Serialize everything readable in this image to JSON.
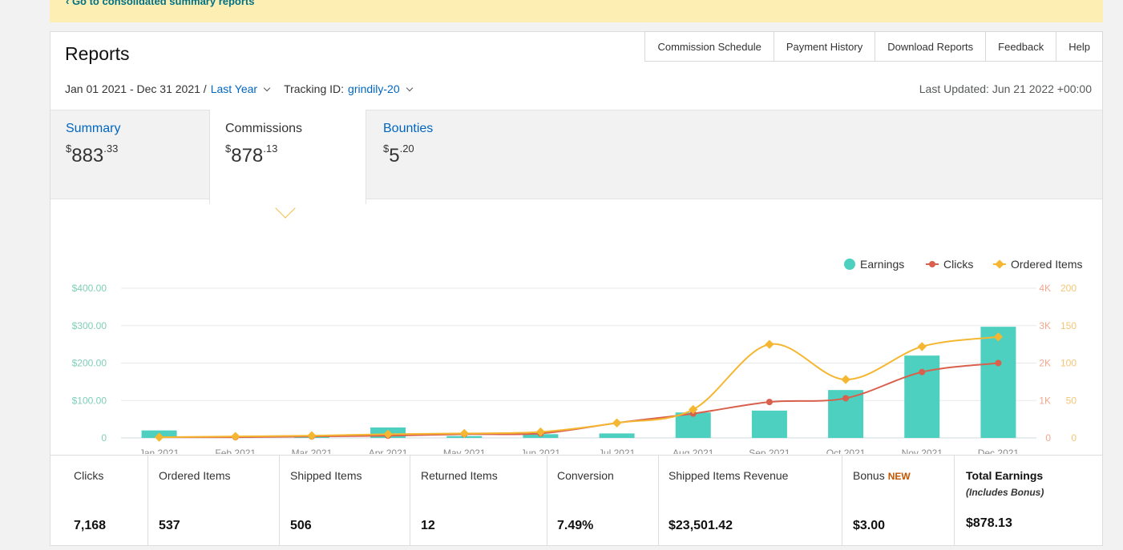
{
  "banner": {
    "link": "‹ Go to consolidated summary reports"
  },
  "header": {
    "title": "Reports",
    "nav": [
      "Commission Schedule",
      "Payment History",
      "Download Reports",
      "Feedback",
      "Help"
    ],
    "date_range": "Jan 01 2021 - Dec 31 2021 /",
    "period": "Last Year",
    "tracking_label": "Tracking ID:",
    "tracking_id": "grindily-20",
    "last_updated": "Last Updated: Jun 21 2022 +00:00"
  },
  "tabs": [
    {
      "label": "Summary",
      "currency": "$",
      "whole": "883",
      "cents": ".33"
    },
    {
      "label": "Commissions",
      "currency": "$",
      "whole": "878",
      "cents": ".13",
      "active": true
    },
    {
      "label": "Bounties",
      "currency": "$",
      "whole": "5",
      "cents": ".20"
    }
  ],
  "chart_data": {
    "type": "bar",
    "categories": [
      "Jan 2021",
      "Feb 2021",
      "Mar 2021",
      "Apr 2021",
      "May 2021",
      "Jun 2021",
      "Jul 2021",
      "Aug 2021",
      "Sep 2021",
      "Oct 2021",
      "Nov 2021",
      "Dec 2021"
    ],
    "series": [
      {
        "name": "Earnings",
        "type": "bar",
        "axis": "left",
        "color": "#4dd0bf",
        "values": [
          20,
          3,
          5,
          28,
          5,
          10,
          12,
          68,
          73,
          128,
          220,
          297
        ]
      },
      {
        "name": "Clicks",
        "type": "line",
        "axis": "right1",
        "color": "#d9604c",
        "values": [
          20,
          20,
          40,
          60,
          100,
          120,
          400,
          650,
          960,
          1060,
          1760,
          2000
        ]
      },
      {
        "name": "Ordered Items",
        "type": "line",
        "axis": "right2",
        "color": "#f5b731",
        "values": [
          1,
          2,
          3,
          5,
          6,
          8,
          20,
          38,
          125,
          78,
          122,
          135
        ]
      }
    ],
    "left_ticks": [
      "0",
      "$100.00",
      "$200.00",
      "$300.00",
      "$400.00"
    ],
    "right1_ticks": [
      "0",
      "1K",
      "2K",
      "3K",
      "4K"
    ],
    "right2_ticks": [
      "0",
      "50",
      "100",
      "150",
      "200"
    ],
    "ylim_left": [
      0,
      400
    ],
    "ylim_right1": [
      0,
      4000
    ],
    "ylim_right2": [
      0,
      200
    ],
    "legend_position": "top-right"
  },
  "stats": [
    {
      "label": "Clicks",
      "value": "7,168"
    },
    {
      "label": "Ordered Items",
      "value": "537"
    },
    {
      "label": "Shipped Items",
      "value": "506"
    },
    {
      "label": "Returned Items",
      "value": "12"
    },
    {
      "label": "Conversion",
      "value": "7.49%"
    },
    {
      "label": "Shipped Items Revenue",
      "value": "$23,501.42"
    },
    {
      "label": "Bonus",
      "badge": "NEW",
      "value": "$3.00"
    },
    {
      "label": "Total Earnings",
      "sub": "(Includes Bonus)",
      "value": "$878.13"
    }
  ]
}
